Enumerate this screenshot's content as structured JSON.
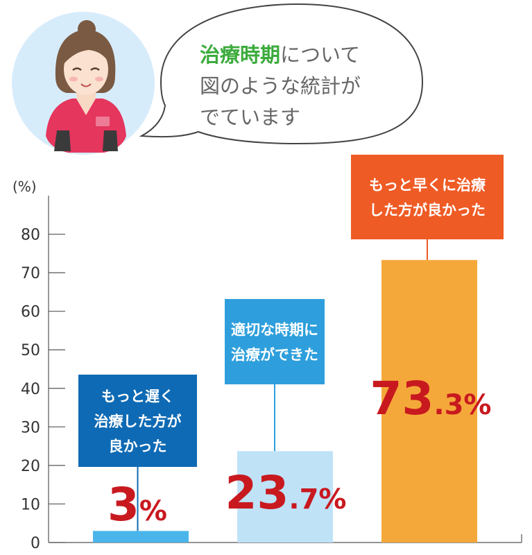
{
  "speech": {
    "highlight": "治療時期",
    "line1_rest": "について",
    "line2": "図のような統計が",
    "line3": "でています"
  },
  "colors": {
    "highlight": "#3cab3c",
    "speech_text": "#666666",
    "avatar_bg": "#d7ecfb",
    "value_text": "#c8191f",
    "axis": "#555555"
  },
  "chart_data": {
    "type": "bar",
    "unit_label": "(%)",
    "ylim": [
      0,
      90
    ],
    "yticks": [
      0,
      10,
      20,
      30,
      40,
      50,
      60,
      70,
      80
    ],
    "grid": false,
    "categories": [
      {
        "label_lines": [
          "もっと遅く",
          "治療した方が",
          "良かった"
        ],
        "value": 3,
        "value_int": "3",
        "value_dec": "",
        "value_unit": "%",
        "bar_color": "#4ab5ea",
        "label_color": "#0e6ab4"
      },
      {
        "label_lines": [
          "適切な時期に",
          "治療ができた"
        ],
        "value": 23.7,
        "value_int": "23",
        "value_dec": ".7",
        "value_unit": "%",
        "bar_color": "#bfe2f7",
        "label_color": "#2e9fdc"
      },
      {
        "label_lines": [
          "もっと早くに治療",
          "した方が良かった"
        ],
        "value": 73.3,
        "value_int": "73",
        "value_dec": ".3",
        "value_unit": "%",
        "bar_color": "#f5a83a",
        "label_color": "#ef5b25"
      }
    ]
  }
}
